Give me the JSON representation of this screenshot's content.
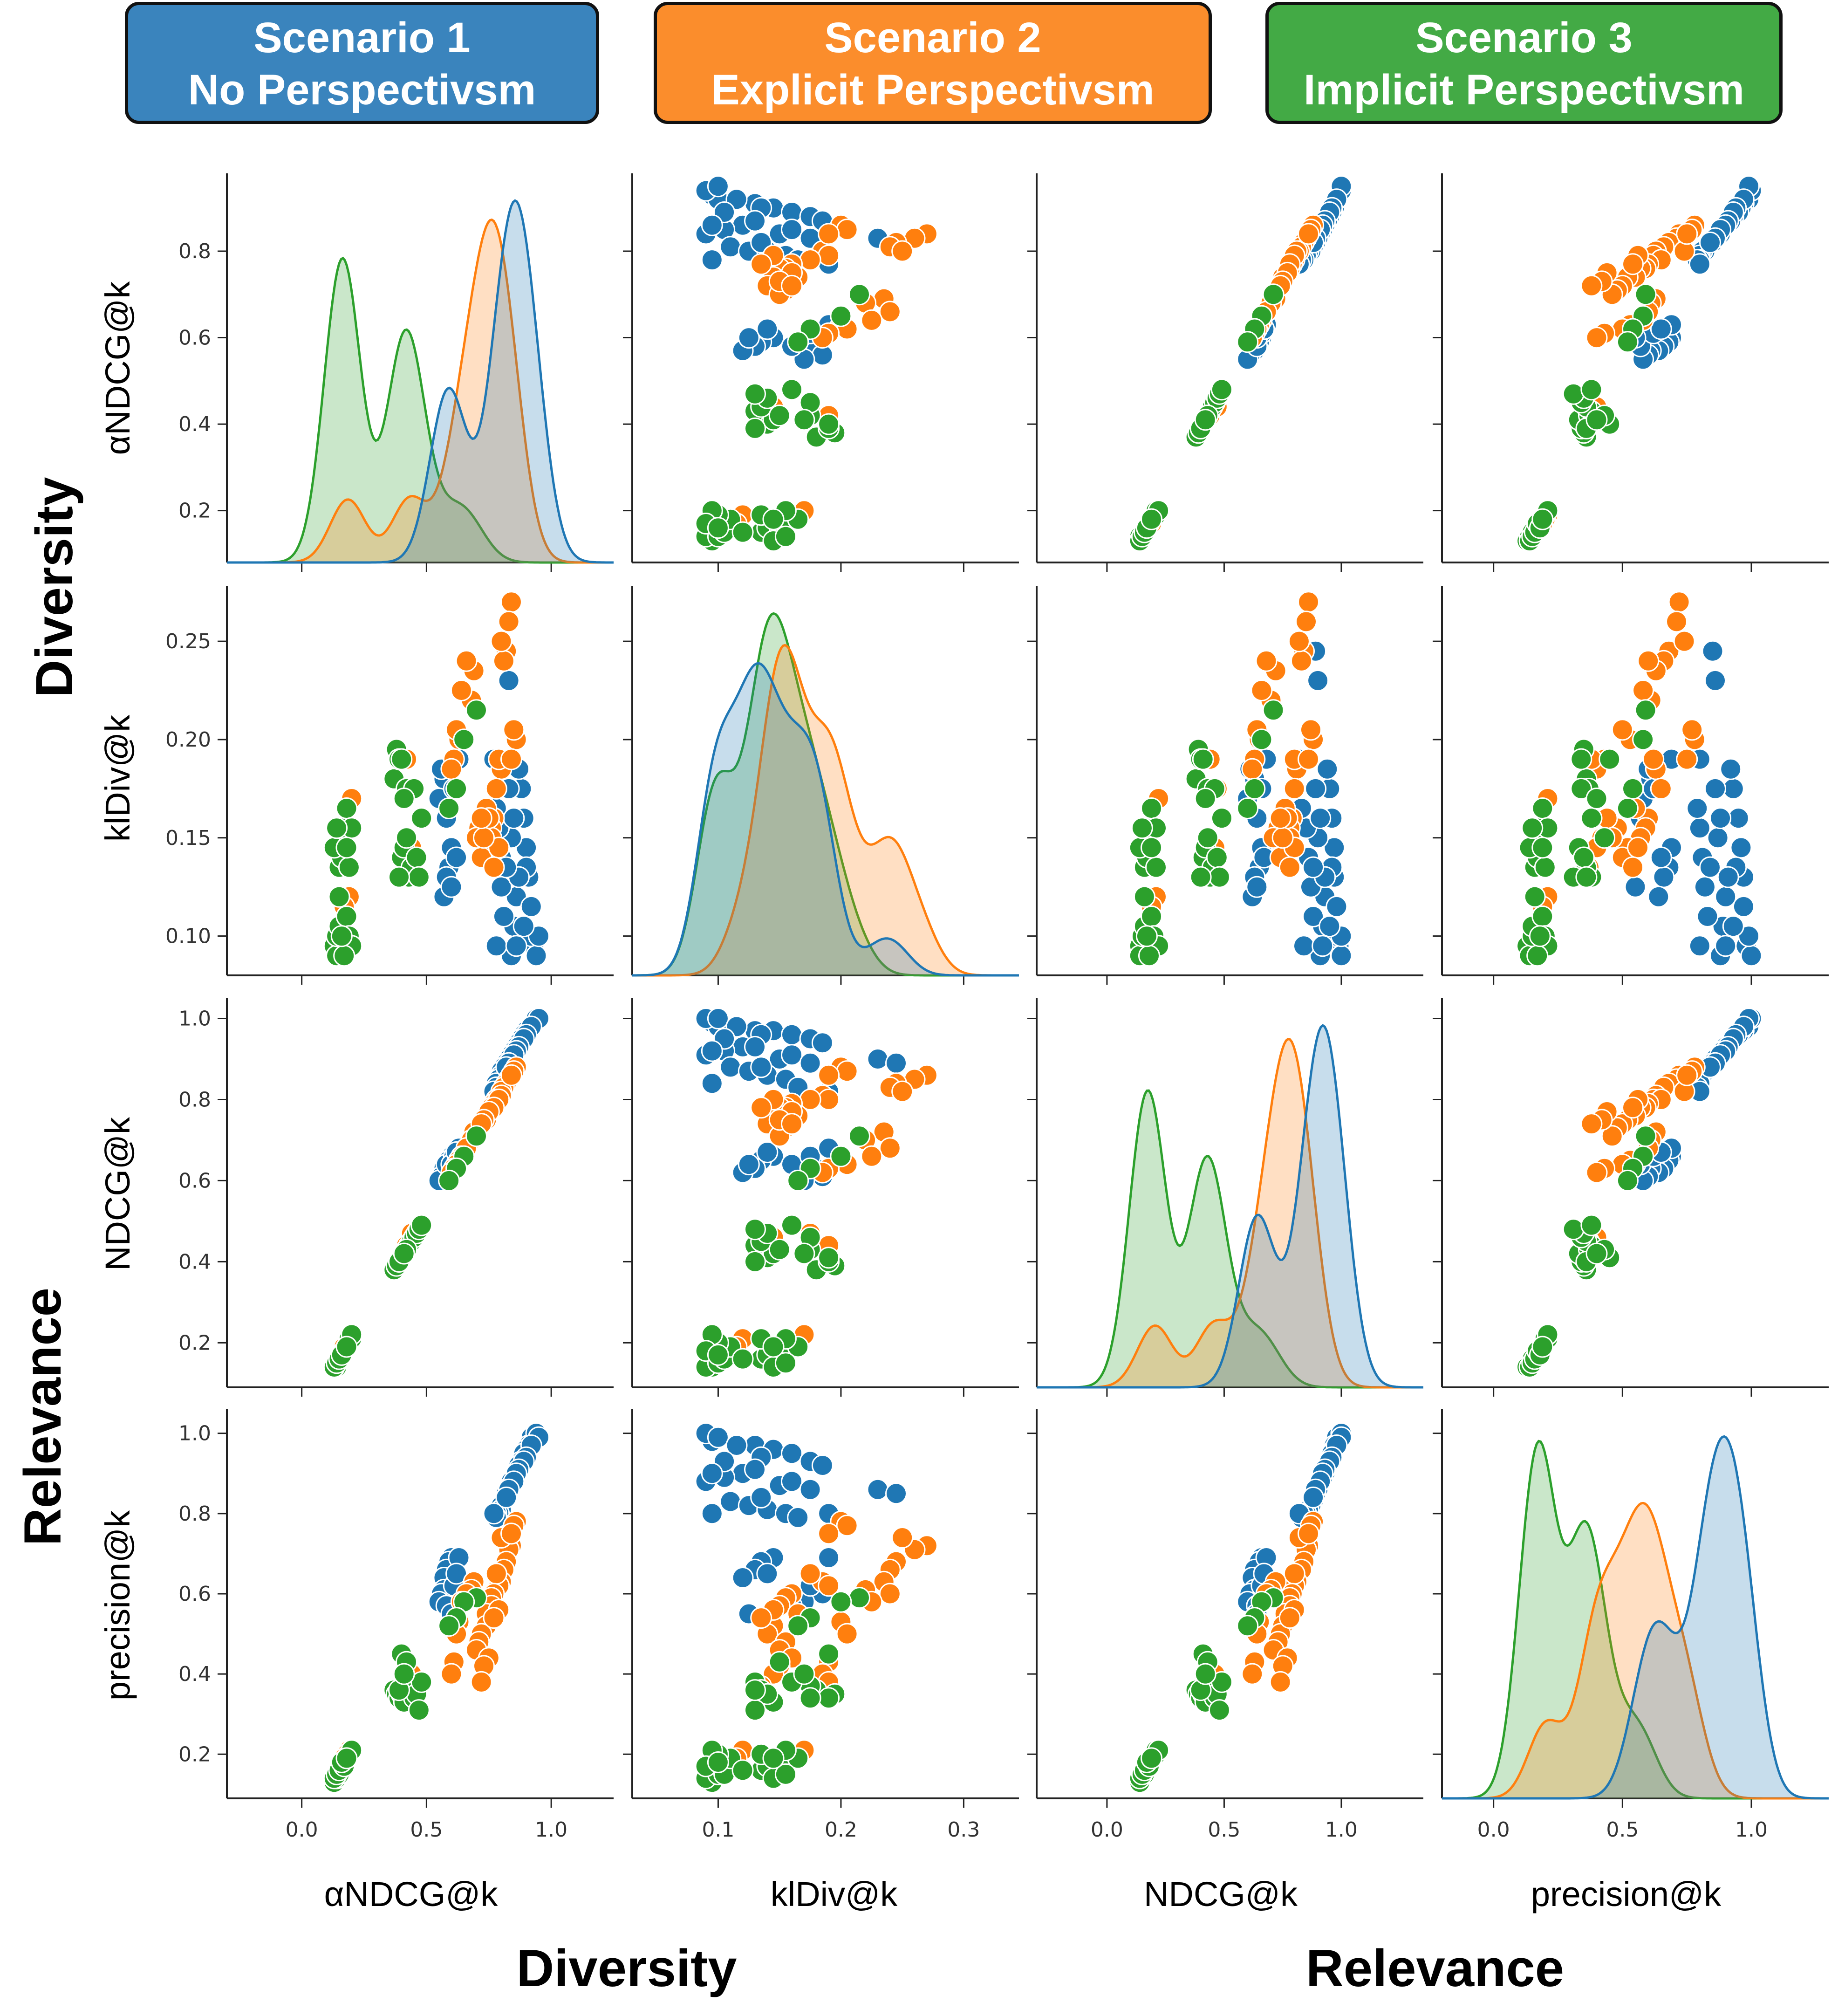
{
  "header": {
    "scenarios": [
      {
        "line1": "Scenario 1",
        "line2": "No Perspectivsm",
        "color": "#3a84bd"
      },
      {
        "line1": "Scenario 2",
        "line2": "Explicit Perspectivsm",
        "color": "#fb8d2c"
      },
      {
        "line1": "Scenario 3",
        "line2": "Implicit Perspectivsm",
        "color": "#43aa45"
      }
    ]
  },
  "group_labels": {
    "row_top": "Diversity",
    "row_bottom": "Relevance",
    "col_left": "Diversity",
    "col_right": "Relevance"
  },
  "chart_data": {
    "type": "scatter",
    "title": "",
    "kind": "pairplot (scatter off-diagonal, KDE on diagonal)",
    "variables": [
      "aNDCG@k",
      "klDiv@k",
      "NDCG@k",
      "precision@k"
    ],
    "variable_labels": [
      "αNDCG@k",
      "klDiv@k",
      "NDCG@k",
      "precision@k"
    ],
    "axis_ranges": {
      "aNDCG@k": [
        -0.3,
        1.25
      ],
      "klDiv@k": [
        0.03,
        0.345
      ],
      "NDCG@k": [
        -0.3,
        1.35
      ],
      "precision@k": [
        -0.2,
        1.3
      ]
    },
    "y_ranges": {
      "aNDCG@k": [
        0.08,
        0.98
      ],
      "klDiv@k": [
        0.08,
        0.278
      ],
      "NDCG@k": [
        0.09,
        1.05
      ],
      "precision@k": [
        0.09,
        1.06
      ]
    },
    "x_ticks": {
      "aNDCG@k": [
        "0.0",
        "0.5",
        "1.0"
      ],
      "klDiv@k": [
        "0.1",
        "0.2",
        "0.3"
      ],
      "NDCG@k": [
        "0.0",
        "0.5",
        "1.0"
      ],
      "precision@k": [
        "0.0",
        "0.5",
        "1.0"
      ]
    },
    "y_ticks": {
      "aNDCG@k": [
        "0.2",
        "0.4",
        "0.6",
        "0.8"
      ],
      "klDiv@k": [
        "0.10",
        "0.15",
        "0.20",
        "0.25"
      ],
      "NDCG@k": [
        "0.2",
        "0.4",
        "0.6",
        "0.8",
        "1.0"
      ],
      "precision@k": [
        "0.2",
        "0.4",
        "0.6",
        "0.8",
        "1.0"
      ]
    },
    "grid": false,
    "legend": "none (scenario colors given by header boxes)",
    "series": [
      {
        "name": "Scenario 1 - No Perspectivsm",
        "color": "#1f77b4",
        "points": [
          [
            0.93,
            0.095,
            0.99,
            0.98
          ],
          [
            0.92,
            0.1,
            0.98,
            0.99
          ],
          [
            0.91,
            0.13,
            0.97,
            0.97
          ],
          [
            0.9,
            0.145,
            0.97,
            0.96
          ],
          [
            0.89,
            0.16,
            0.96,
            0.95
          ],
          [
            0.88,
            0.175,
            0.95,
            0.93
          ],
          [
            0.87,
            0.185,
            0.94,
            0.92
          ],
          [
            0.86,
            0.12,
            0.93,
            0.9
          ],
          [
            0.85,
            0.105,
            0.92,
            0.89
          ],
          [
            0.84,
            0.09,
            0.91,
            0.88
          ],
          [
            0.84,
            0.15,
            0.9,
            0.87
          ],
          [
            0.83,
            0.23,
            0.9,
            0.86
          ],
          [
            0.82,
            0.245,
            0.89,
            0.85
          ],
          [
            0.81,
            0.11,
            0.88,
            0.83
          ],
          [
            0.8,
            0.125,
            0.87,
            0.82
          ],
          [
            0.8,
            0.14,
            0.86,
            0.81
          ],
          [
            0.79,
            0.155,
            0.85,
            0.8
          ],
          [
            0.78,
            0.095,
            0.84,
            0.8
          ],
          [
            0.78,
            0.165,
            0.83,
            0.79
          ],
          [
            0.77,
            0.19,
            0.82,
            0.8
          ],
          [
            0.94,
            0.09,
            1.0,
            1.0
          ],
          [
            0.95,
            0.1,
            1.0,
            0.99
          ],
          [
            0.92,
            0.115,
            0.98,
            0.97
          ],
          [
            0.9,
            0.135,
            0.96,
            0.94
          ],
          [
            0.89,
            0.105,
            0.95,
            0.93
          ],
          [
            0.87,
            0.13,
            0.93,
            0.91
          ],
          [
            0.86,
            0.095,
            0.92,
            0.9
          ],
          [
            0.85,
            0.16,
            0.91,
            0.88
          ],
          [
            0.83,
            0.175,
            0.89,
            0.86
          ],
          [
            0.82,
            0.135,
            0.88,
            0.84
          ],
          [
            0.6,
            0.145,
            0.66,
            0.69
          ],
          [
            0.59,
            0.135,
            0.65,
            0.68
          ],
          [
            0.58,
            0.13,
            0.63,
            0.66
          ],
          [
            0.57,
            0.12,
            0.62,
            0.64
          ],
          [
            0.57,
            0.18,
            0.63,
            0.61
          ],
          [
            0.56,
            0.185,
            0.61,
            0.6
          ],
          [
            0.55,
            0.17,
            0.6,
            0.58
          ],
          [
            0.58,
            0.16,
            0.64,
            0.57
          ],
          [
            0.61,
            0.175,
            0.66,
            0.62
          ],
          [
            0.6,
            0.125,
            0.64,
            0.55
          ],
          [
            0.63,
            0.19,
            0.68,
            0.69
          ],
          [
            0.62,
            0.14,
            0.67,
            0.65
          ]
        ]
      },
      {
        "name": "Scenario 2 - Explicit Perspectivsm",
        "color": "#ff7f0e",
        "points": [
          [
            0.84,
            0.27,
            0.86,
            0.72
          ],
          [
            0.83,
            0.26,
            0.85,
            0.71
          ],
          [
            0.82,
            0.245,
            0.84,
            0.68
          ],
          [
            0.81,
            0.24,
            0.83,
            0.66
          ],
          [
            0.8,
            0.25,
            0.82,
            0.74
          ],
          [
            0.8,
            0.185,
            0.81,
            0.63
          ],
          [
            0.79,
            0.19,
            0.8,
            0.62
          ],
          [
            0.78,
            0.175,
            0.8,
            0.65
          ],
          [
            0.77,
            0.16,
            0.79,
            0.6
          ],
          [
            0.76,
            0.155,
            0.78,
            0.59
          ],
          [
            0.76,
            0.15,
            0.78,
            0.57
          ],
          [
            0.74,
            0.165,
            0.76,
            0.55
          ],
          [
            0.74,
            0.145,
            0.75,
            0.52
          ],
          [
            0.72,
            0.14,
            0.74,
            0.5
          ],
          [
            0.71,
            0.155,
            0.73,
            0.48
          ],
          [
            0.7,
            0.15,
            0.71,
            0.46
          ],
          [
            0.69,
            0.235,
            0.72,
            0.63
          ],
          [
            0.68,
            0.22,
            0.7,
            0.61
          ],
          [
            0.66,
            0.24,
            0.68,
            0.6
          ],
          [
            0.64,
            0.225,
            0.66,
            0.58
          ],
          [
            0.63,
            0.2,
            0.65,
            0.53
          ],
          [
            0.62,
            0.205,
            0.64,
            0.5
          ],
          [
            0.61,
            0.19,
            0.63,
            0.43
          ],
          [
            0.6,
            0.185,
            0.62,
            0.4
          ],
          [
            0.86,
            0.2,
            0.88,
            0.78
          ],
          [
            0.85,
            0.205,
            0.87,
            0.77
          ],
          [
            0.84,
            0.19,
            0.86,
            0.75
          ],
          [
            0.79,
            0.145,
            0.8,
            0.56
          ],
          [
            0.77,
            0.135,
            0.78,
            0.54
          ],
          [
            0.75,
            0.16,
            0.77,
            0.44
          ],
          [
            0.73,
            0.15,
            0.75,
            0.42
          ],
          [
            0.72,
            0.16,
            0.74,
            0.38
          ],
          [
            0.2,
            0.17,
            0.22,
            0.21
          ],
          [
            0.19,
            0.12,
            0.21,
            0.21
          ],
          [
            0.18,
            0.155,
            0.2,
            0.2
          ],
          [
            0.17,
            0.115,
            0.19,
            0.19
          ],
          [
            0.44,
            0.145,
            0.46,
            0.4
          ],
          [
            0.43,
            0.135,
            0.45,
            0.37
          ],
          [
            0.42,
            0.19,
            0.44,
            0.38
          ],
          [
            0.44,
            0.175,
            0.47,
            0.36
          ]
        ]
      },
      {
        "name": "Scenario 3 - Implicit Perspectivsm",
        "color": "#2ca02c",
        "points": [
          [
            0.13,
            0.095,
            0.14,
            0.13
          ],
          [
            0.14,
            0.09,
            0.14,
            0.14
          ],
          [
            0.14,
            0.1,
            0.15,
            0.15
          ],
          [
            0.15,
            0.105,
            0.16,
            0.15
          ],
          [
            0.15,
            0.135,
            0.16,
            0.16
          ],
          [
            0.16,
            0.14,
            0.17,
            0.17
          ],
          [
            0.16,
            0.15,
            0.17,
            0.17
          ],
          [
            0.17,
            0.155,
            0.18,
            0.18
          ],
          [
            0.18,
            0.11,
            0.19,
            0.19
          ],
          [
            0.18,
            0.165,
            0.19,
            0.19
          ],
          [
            0.19,
            0.1,
            0.2,
            0.2
          ],
          [
            0.19,
            0.135,
            0.21,
            0.2
          ],
          [
            0.2,
            0.155,
            0.21,
            0.21
          ],
          [
            0.2,
            0.095,
            0.22,
            0.21
          ],
          [
            0.13,
            0.145,
            0.14,
            0.14
          ],
          [
            0.14,
            0.155,
            0.15,
            0.15
          ],
          [
            0.15,
            0.12,
            0.16,
            0.16
          ],
          [
            0.17,
            0.09,
            0.18,
            0.17
          ],
          [
            0.16,
            0.1,
            0.17,
            0.18
          ],
          [
            0.18,
            0.145,
            0.19,
            0.19
          ],
          [
            0.37,
            0.18,
            0.38,
            0.36
          ],
          [
            0.38,
            0.195,
            0.39,
            0.35
          ],
          [
            0.39,
            0.19,
            0.4,
            0.34
          ],
          [
            0.4,
            0.14,
            0.41,
            0.35
          ],
          [
            0.41,
            0.145,
            0.42,
            0.33
          ],
          [
            0.42,
            0.175,
            0.43,
            0.37
          ],
          [
            0.43,
            0.13,
            0.44,
            0.38
          ],
          [
            0.44,
            0.135,
            0.45,
            0.36
          ],
          [
            0.45,
            0.175,
            0.46,
            0.34
          ],
          [
            0.46,
            0.14,
            0.47,
            0.35
          ],
          [
            0.47,
            0.13,
            0.48,
            0.31
          ],
          [
            0.48,
            0.16,
            0.49,
            0.38
          ],
          [
            0.4,
            0.19,
            0.41,
            0.45
          ],
          [
            0.42,
            0.15,
            0.43,
            0.43
          ],
          [
            0.39,
            0.13,
            0.4,
            0.36
          ],
          [
            0.41,
            0.17,
            0.42,
            0.4
          ],
          [
            0.7,
            0.215,
            0.71,
            0.59
          ],
          [
            0.65,
            0.2,
            0.66,
            0.58
          ],
          [
            0.62,
            0.175,
            0.63,
            0.54
          ],
          [
            0.59,
            0.165,
            0.6,
            0.52
          ]
        ]
      }
    ]
  }
}
